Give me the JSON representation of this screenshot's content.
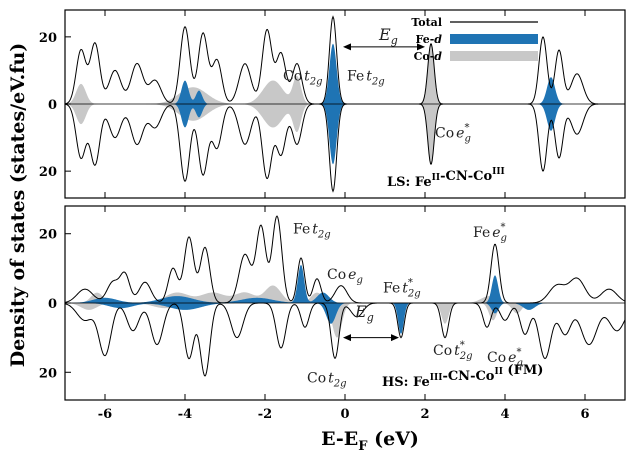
{
  "chart_data": {
    "type": "line",
    "xlabel_main": "E-E",
    "xlabel_sub": "F",
    "xlabel_unit": " (eV)",
    "ylabel": "Density of states (states/eV.fu)",
    "xlim": [
      -7,
      7
    ],
    "xticks": [
      -6,
      -4,
      -2,
      0,
      2,
      4,
      6
    ],
    "ylim_top": [
      -28,
      28
    ],
    "ylim_bottom": [
      -28,
      28
    ],
    "ytick_labels": [
      "20",
      "0",
      "20"
    ],
    "legend": [
      {
        "label": "Total",
        "color": "#000000",
        "kind": "line"
      },
      {
        "label": "Fe-d",
        "color": "#1f74b4",
        "kind": "fill"
      },
      {
        "label": "Co-d",
        "color": "#c8c8c8",
        "kind": "fill"
      }
    ],
    "panels": [
      {
        "label": "LS: Fe",
        "label_parts": [
          {
            "t": "LS: Fe",
            "sup": ""
          },
          {
            "t": "",
            "sup": "II"
          },
          {
            "t": "-CN-Co",
            "sup": ""
          },
          {
            "t": "",
            "sup": "III"
          }
        ],
        "total_peaks": [
          [
            -6.6,
            16,
            0.12
          ],
          [
            -6.25,
            18,
            0.12
          ],
          [
            -5.75,
            10,
            0.15
          ],
          [
            -5.2,
            12,
            0.15
          ],
          [
            -4.75,
            7,
            0.15
          ],
          [
            -4.0,
            23,
            0.12
          ],
          [
            -3.55,
            21,
            0.12
          ],
          [
            -3.2,
            13,
            0.12
          ],
          [
            -2.5,
            12,
            0.15
          ],
          [
            -1.95,
            22,
            0.12
          ],
          [
            -1.6,
            15,
            0.12
          ],
          [
            -1.2,
            12,
            0.12
          ],
          [
            -0.3,
            26,
            0.09
          ],
          [
            2.15,
            18,
            0.08
          ],
          [
            4.95,
            20,
            0.1
          ],
          [
            5.35,
            16,
            0.1
          ],
          [
            5.8,
            9,
            0.15
          ]
        ],
        "fe_peaks": [
          [
            -4.0,
            7,
            0.09
          ],
          [
            -3.65,
            4,
            0.08
          ],
          [
            -0.3,
            18,
            0.09
          ],
          [
            5.15,
            8,
            0.1
          ]
        ],
        "co_peaks": [
          [
            -6.6,
            6,
            0.12
          ],
          [
            -3.8,
            5,
            0.35
          ],
          [
            -1.8,
            7,
            0.25
          ],
          [
            -1.2,
            8,
            0.1
          ],
          [
            2.15,
            18,
            0.08
          ]
        ],
        "annotations": [
          {
            "text": "Co",
            "sub": "2g",
            "italic": "t",
            "x": -1.55,
            "y": 7
          },
          {
            "text": "Fe",
            "sub": "2g",
            "italic": "t",
            "x": 0.05,
            "y": 7
          },
          {
            "text": "Co",
            "sub": "g",
            "sup": "*",
            "italic": "e",
            "x": 2.25,
            "y": -10
          },
          {
            "text": "E",
            "sub": "g",
            "x": 0.85,
            "y": 19,
            "italic_only": true
          }
        ],
        "eg_arrow": [
          -0.05,
          2.0,
          17
        ]
      },
      {
        "label": "HS: Fe",
        "label_parts": [
          {
            "t": "HS: Fe",
            "sup": ""
          },
          {
            "t": "",
            "sup": "III"
          },
          {
            "t": "-CN-Co",
            "sup": ""
          },
          {
            "t": "",
            "sup": "II"
          },
          {
            "t": " (FM)",
            "sup": ""
          }
        ],
        "total_peaks_up": [
          [
            -6.5,
            4,
            0.2
          ],
          [
            -5.8,
            6,
            0.15
          ],
          [
            -5.5,
            8,
            0.12
          ],
          [
            -5.0,
            6,
            0.15
          ],
          [
            -4.3,
            10,
            0.12
          ],
          [
            -3.9,
            19,
            0.12
          ],
          [
            -3.5,
            16,
            0.12
          ],
          [
            -2.5,
            14,
            0.15
          ],
          [
            -2.1,
            22,
            0.12
          ],
          [
            -1.7,
            25,
            0.12
          ],
          [
            -1.1,
            13,
            0.09
          ],
          [
            -0.7,
            7,
            0.1
          ],
          [
            -0.1,
            5,
            0.15
          ],
          [
            3.75,
            17,
            0.1
          ],
          [
            5.3,
            5,
            0.2
          ],
          [
            5.8,
            7,
            0.2
          ],
          [
            6.6,
            4,
            0.2
          ]
        ],
        "total_peaks_down": [
          [
            -6.5,
            5,
            0.2
          ],
          [
            -6.0,
            15,
            0.15
          ],
          [
            -5.3,
            8,
            0.15
          ],
          [
            -4.7,
            12,
            0.15
          ],
          [
            -3.9,
            16,
            0.12
          ],
          [
            -3.5,
            21,
            0.12
          ],
          [
            -2.7,
            10,
            0.15
          ],
          [
            -1.6,
            13,
            0.12
          ],
          [
            -1.0,
            7,
            0.1
          ],
          [
            -0.25,
            16,
            0.1
          ],
          [
            0.3,
            4,
            0.15
          ],
          [
            1.4,
            10,
            0.08
          ],
          [
            2.5,
            10,
            0.09
          ],
          [
            3.55,
            7,
            0.1
          ],
          [
            4.0,
            5,
            0.12
          ],
          [
            4.5,
            9,
            0.12
          ],
          [
            5.0,
            16,
            0.15
          ],
          [
            5.5,
            9,
            0.15
          ],
          [
            6.1,
            12,
            0.2
          ],
          [
            6.8,
            8,
            0.2
          ]
        ],
        "fe_peaks_up": [
          [
            -1.1,
            11,
            0.08
          ],
          [
            -0.55,
            3,
            0.15
          ],
          [
            3.75,
            8,
            0.08
          ],
          [
            -6.0,
            1.5,
            0.3
          ],
          [
            -4.2,
            2,
            0.4
          ],
          [
            -2.2,
            1.5,
            0.4
          ]
        ],
        "fe_peaks_down": [
          [
            -0.35,
            6,
            0.12
          ],
          [
            1.4,
            9,
            0.07
          ],
          [
            3.75,
            3,
            0.09
          ],
          [
            4.6,
            2,
            0.15
          ],
          [
            -5.6,
            1.5,
            0.3
          ],
          [
            -4.0,
            2,
            0.4
          ]
        ],
        "co_peaks_up": [
          [
            -6.2,
            3,
            0.15
          ],
          [
            -4.2,
            3,
            0.3
          ],
          [
            -3.3,
            3,
            0.3
          ],
          [
            -2.5,
            3,
            0.25
          ],
          [
            -1.8,
            5,
            0.2
          ],
          [
            -0.7,
            3,
            0.15
          ],
          [
            3.6,
            2,
            0.2
          ]
        ],
        "co_peaks_down": [
          [
            -6.4,
            2,
            0.2
          ],
          [
            -4.5,
            1.5,
            0.3
          ],
          [
            -0.2,
            10,
            0.12
          ],
          [
            2.5,
            6,
            0.09
          ],
          [
            3.7,
            5,
            0.1
          ],
          [
            4.3,
            3,
            0.12
          ]
        ],
        "annotations": [
          {
            "text": "Fe",
            "sub": "2g",
            "italic": "t",
            "x": -1.3,
            "y": 20
          },
          {
            "text": "Co",
            "sub": "g",
            "italic": "e",
            "x": -0.45,
            "y": 7
          },
          {
            "text": "Fe",
            "sub": "2g",
            "sup": "*",
            "italic": "t",
            "x": 0.95,
            "y": 3
          },
          {
            "text": "Co",
            "sub": "2g",
            "sup": "*",
            "italic": "t",
            "x": 2.2,
            "y": -15
          },
          {
            "text": "Co",
            "sub": "2g",
            "italic": "t",
            "x": -0.95,
            "y": -23
          },
          {
            "text": "Fe",
            "sub": "g",
            "sup": "*",
            "italic": "e",
            "x": 3.2,
            "y": 19
          },
          {
            "text": "Co",
            "sub": "g",
            "sup": "*",
            "italic": "e",
            "x": 3.55,
            "y": -17
          },
          {
            "text": "E",
            "sub": "g",
            "x": 0.25,
            "y": -4,
            "italic_only": true
          }
        ],
        "eg_arrow": [
          -0.05,
          1.35,
          -10
        ]
      }
    ]
  }
}
